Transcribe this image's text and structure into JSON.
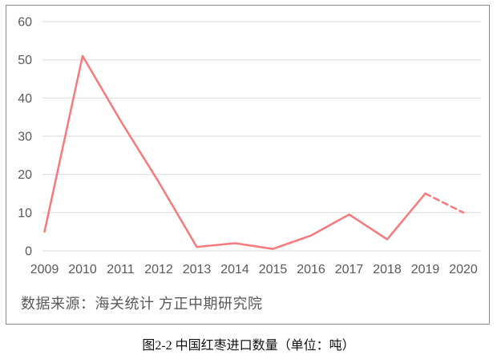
{
  "chart_data": {
    "type": "line",
    "title": "",
    "xlabel": "",
    "ylabel": "",
    "categories": [
      "2009",
      "2010",
      "2011",
      "2012",
      "2013",
      "2014",
      "2015",
      "2016",
      "2017",
      "2018",
      "2019",
      "2020"
    ],
    "values": [
      5,
      51,
      34,
      18,
      1,
      2,
      0.5,
      4,
      9.5,
      3,
      15,
      10
    ],
    "dashed_from_index": 10,
    "yticks": [
      0,
      10,
      20,
      30,
      40,
      50,
      60
    ],
    "ylim": [
      0,
      60
    ],
    "grid": true,
    "legend": false,
    "line_color": "#f8797c",
    "grid_color": "#d9d9d9",
    "axis_text_color": "#595959",
    "frame_border_color": "#8a8a8a",
    "source_note": "数据来源：海关统计 方正中期研究院",
    "caption": "图2-2 中国红枣进口数量（单位：吨）"
  }
}
